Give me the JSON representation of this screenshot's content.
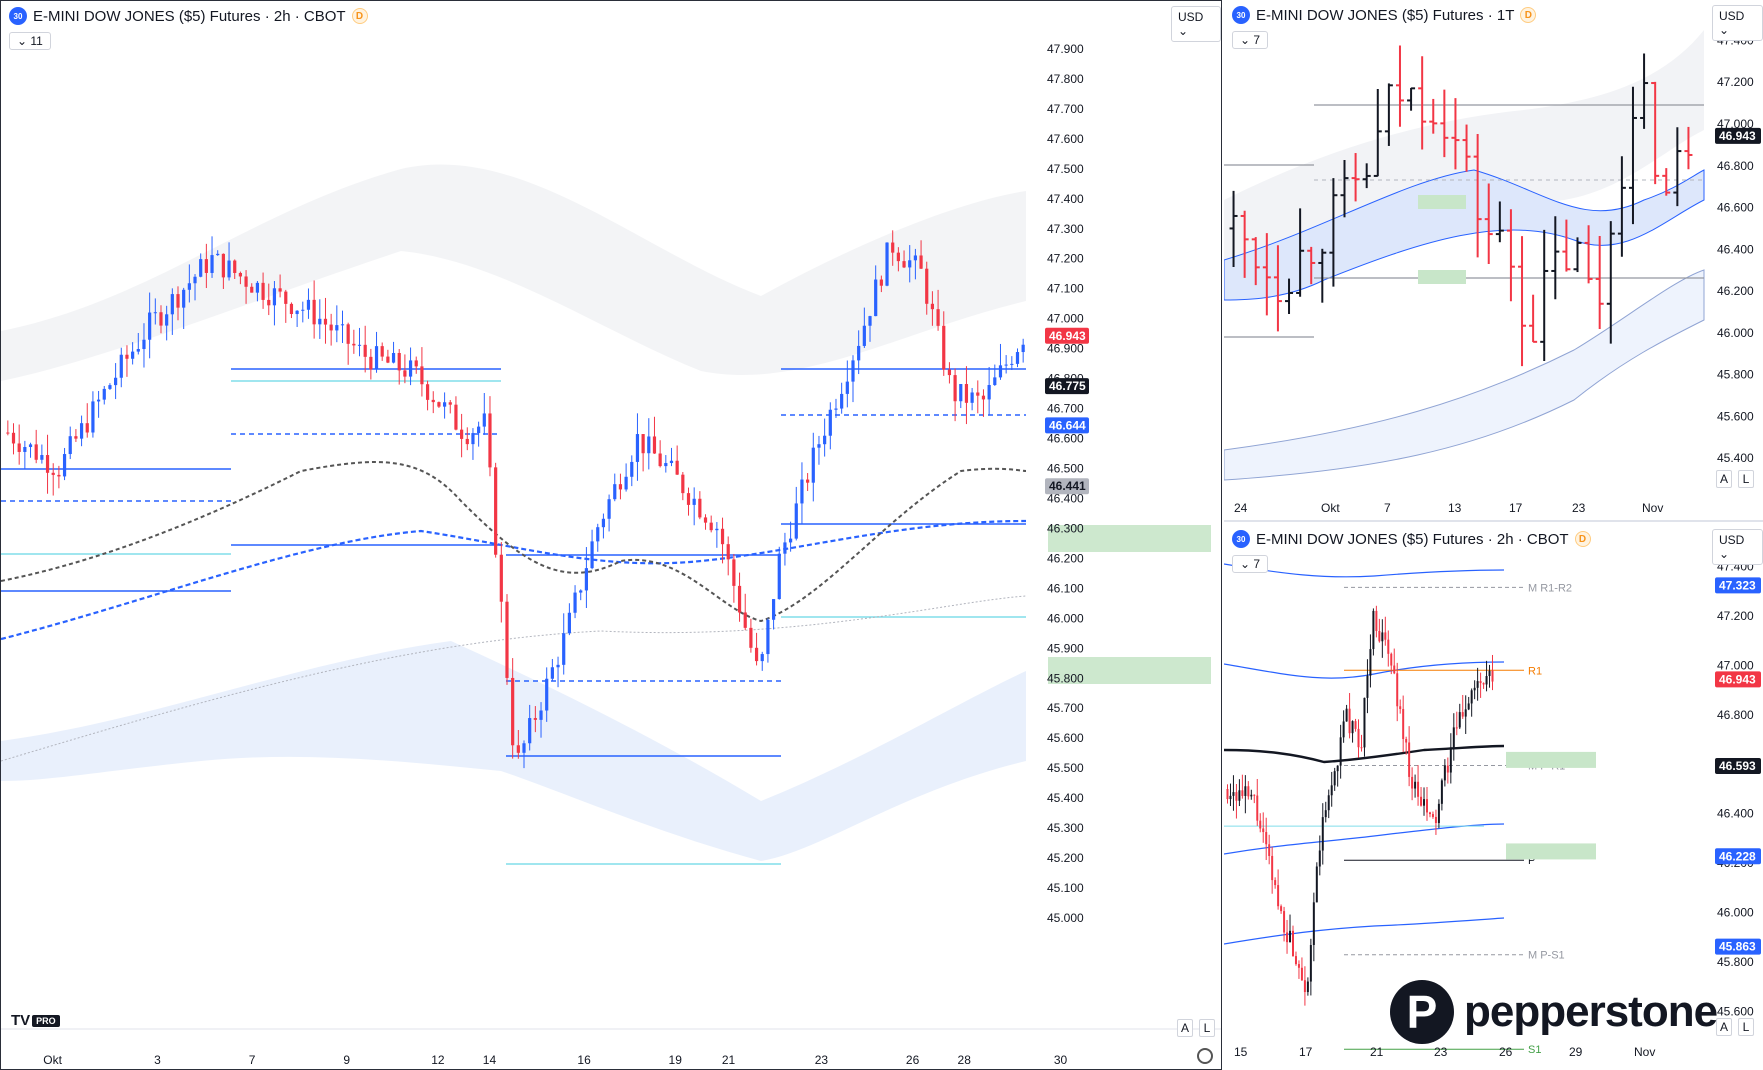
{
  "panes": [
    {
      "id": "main",
      "title": "E-MINI DOW JONES ($5) Futures · 2h · CBOT",
      "symbol_badge": "30",
      "d_badge": "D",
      "collapse_label": "11",
      "currency": "USD",
      "price_axis": {
        "ticks": [
          "47.900",
          "47.800",
          "47.700",
          "47.600",
          "47.500",
          "47.400",
          "47.300",
          "47.200",
          "47.100",
          "47.000",
          "46.900",
          "46.800",
          "46.700",
          "46.600",
          "46.500",
          "46.400",
          "46.300",
          "46.200",
          "46.100",
          "46.000",
          "45.900",
          "45.800",
          "45.700",
          "45.600",
          "45.500",
          "45.400",
          "45.300",
          "45.200",
          "45.100",
          "45.000"
        ],
        "labels": [
          {
            "text": "46.943",
            "bg": "#f23645",
            "fg": "#ffffff",
            "value": 46943
          },
          {
            "text": "46.775",
            "bg": "#131722",
            "fg": "#ffffff",
            "value": 46775
          },
          {
            "text": "46.644",
            "bg": "#2962ff",
            "fg": "#ffffff",
            "value": 46644
          },
          {
            "text": "46.441",
            "bg": "#b2b5be",
            "fg": "#131722",
            "value": 46441
          }
        ]
      },
      "time_axis": [
        "Okt",
        "3",
        "7",
        "9",
        "12",
        "14",
        "16",
        "19",
        "21",
        "23",
        "26",
        "28",
        "30"
      ],
      "a_label": "A",
      "l_label": "L"
    },
    {
      "id": "top-right",
      "title": "E-MINI DOW JONES ($5) Futures · 1T",
      "symbol_badge": "30",
      "d_badge": "D",
      "collapse_label": "7",
      "currency": "USD",
      "price_axis": {
        "ticks": [
          "47.400",
          "47.200",
          "47.000",
          "46.800",
          "46.600",
          "46.400",
          "46.200",
          "46.000",
          "45.800",
          "45.600",
          "45.400"
        ],
        "labels": [
          {
            "text": "46.943",
            "bg": "#131722",
            "fg": "#ffffff",
            "value": 46943
          }
        ]
      },
      "time_axis": [
        "24",
        "Okt",
        "7",
        "13",
        "17",
        "23",
        "Nov"
      ],
      "a_label": "A",
      "l_label": "L"
    },
    {
      "id": "bottom-right",
      "title": "E-MINI DOW JONES ($5) Futures · 2h · CBOT",
      "symbol_badge": "30",
      "d_badge": "D",
      "collapse_label": "7",
      "currency": "USD",
      "price_axis": {
        "ticks": [
          "47.400",
          "47.200",
          "47.000",
          "46.800",
          "46.600",
          "46.400",
          "46.200",
          "46.000",
          "45.800",
          "45.600"
        ],
        "labels": [
          {
            "text": "47.323",
            "bg": "#2962ff",
            "fg": "#ffffff",
            "value": 47323
          },
          {
            "text": "46.943",
            "bg": "#f23645",
            "fg": "#ffffff",
            "value": 46943
          },
          {
            "text": "46.593",
            "bg": "#131722",
            "fg": "#ffffff",
            "value": 46593
          },
          {
            "text": "46.228",
            "bg": "#2962ff",
            "fg": "#ffffff",
            "value": 46228
          },
          {
            "text": "45.863",
            "bg": "#2962ff",
            "fg": "#ffffff",
            "value": 45863
          }
        ]
      },
      "time_axis": [
        "15",
        "17",
        "21",
        "23",
        "26",
        "29",
        "Nov"
      ],
      "pivot_labels": [
        {
          "text": "M R1-R2",
          "color": "#9598a1"
        },
        {
          "text": "R1",
          "color": "#f57c00"
        },
        {
          "text": "M P-R1",
          "color": "#9598a1"
        },
        {
          "text": "P",
          "color": "#131722"
        },
        {
          "text": "M P-S1",
          "color": "#9598a1"
        },
        {
          "text": "S1",
          "color": "#43a047"
        }
      ],
      "a_label": "A",
      "l_label": "L"
    }
  ],
  "branding": {
    "tv_logo": "TV",
    "tv_pro": "PRO",
    "broker_mark": "P",
    "broker_name": "pepperstone"
  },
  "colors": {
    "up": "#131722",
    "down": "#f23645",
    "blue": "#2962ff",
    "zone": "#c8e6c9",
    "band": "#e3ecfb"
  },
  "chart_data": [
    {
      "type": "candlestick",
      "pane": "main",
      "title": "E-MINI DOW JONES ($5) Futures · 2h · CBOT",
      "ylim": [
        44990,
        47960
      ],
      "levels": [
        {
          "value": 46943,
          "label": "46.943"
        },
        {
          "value": 46775,
          "label": "46.775"
        },
        {
          "value": 46644,
          "label": "46.644"
        },
        {
          "value": 46441,
          "label": "46.441"
        }
      ]
    },
    {
      "type": "bar",
      "pane": "top-right",
      "title": "E-MINI DOW JONES ($5) Futures · 1T",
      "ylim": [
        45200,
        47450
      ],
      "levels": [
        {
          "value": 46943,
          "label": "46.943"
        }
      ]
    },
    {
      "type": "candlestick",
      "pane": "bottom-right",
      "title": "E-MINI DOW JONES ($5) Futures · 2h · CBOT",
      "ylim": [
        45550,
        47450
      ],
      "pivots": [
        {
          "name": "M R1-R2",
          "value": 47315
        },
        {
          "name": "R1",
          "value": 46980
        },
        {
          "name": "M P-R1",
          "value": 46595
        },
        {
          "name": "P",
          "value": 46212
        },
        {
          "name": "M P-S1",
          "value": 45830
        },
        {
          "name": "S1",
          "value": 45448
        }
      ],
      "levels": [
        {
          "value": 47323,
          "label": "47.323"
        },
        {
          "value": 46943,
          "label": "46.943"
        },
        {
          "value": 46593,
          "label": "46.593"
        },
        {
          "value": 46228,
          "label": "46.228"
        },
        {
          "value": 45863,
          "label": "45.863"
        }
      ]
    }
  ]
}
